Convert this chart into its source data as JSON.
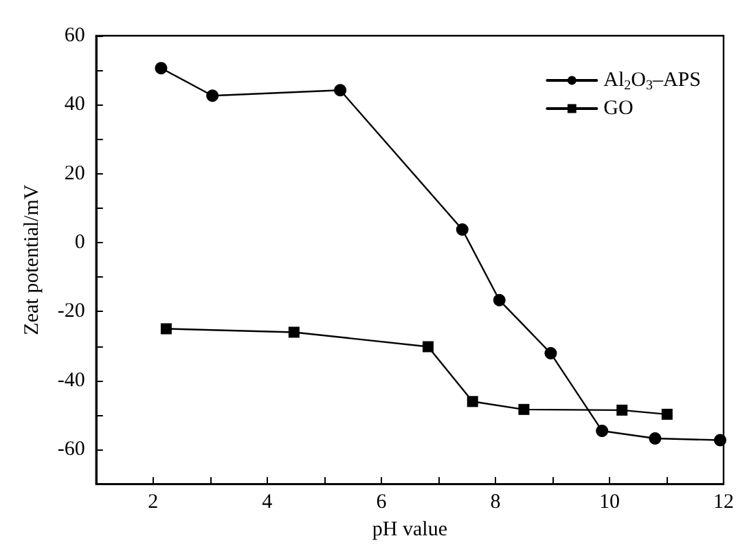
{
  "chart_data": {
    "type": "line",
    "xlabel": "pH value",
    "ylabel": "Zeat potential/mV",
    "xlim": [
      1,
      12
    ],
    "xticks": [
      {
        "value": 1,
        "label": null
      },
      2,
      {
        "value": 3,
        "label": null
      },
      4,
      {
        "value": 5,
        "label": null
      },
      6,
      {
        "value": 7,
        "label": null
      },
      8,
      {
        "value": 9,
        "label": null
      },
      10,
      {
        "value": 11,
        "label": null
      },
      12
    ],
    "ylim": [
      -70,
      60
    ],
    "yticks": [
      -60,
      {
        "value": -50,
        "label": null
      },
      -40,
      {
        "value": -30,
        "label": null
      },
      -20,
      {
        "value": -10,
        "label": null
      },
      0,
      {
        "value": 10,
        "label": null
      },
      20,
      {
        "value": 30,
        "label": null
      },
      40,
      {
        "value": 50,
        "label": null
      },
      60
    ],
    "grid": false,
    "legend": "top right",
    "line_style": "solid",
    "series": [
      {
        "name": "Al$_{2}$O$_{3}$–APS",
        "color": "#000000",
        "marker": "circle",
        "x": [
          2.14,
          3.04,
          5.28,
          7.42,
          8.07,
          8.97,
          9.87,
          10.8,
          11.94
        ],
        "values": [
          50.6,
          42.6,
          44.2,
          3.8,
          -16.7,
          -32.1,
          -54.6,
          -56.8,
          -57.3
        ]
      },
      {
        "name": "GO",
        "color": "#000000",
        "marker": "square",
        "x": [
          2.23,
          4.47,
          6.82,
          7.6,
          8.5,
          10.22,
          11.01
        ],
        "values": [
          -25.0,
          -26.0,
          -30.2,
          -46.1,
          -48.4,
          -48.6,
          -49.8
        ]
      }
    ]
  }
}
